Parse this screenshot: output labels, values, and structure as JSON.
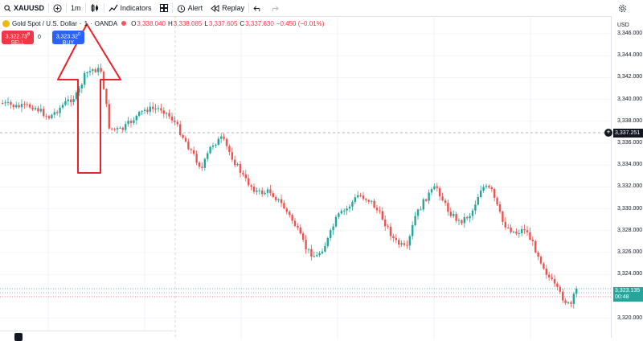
{
  "toolbar": {
    "symbol": "XAUUSD",
    "interval": "1m",
    "indicators_label": "Indicators",
    "alert_label": "Alert",
    "replay_label": "Replay"
  },
  "legend": {
    "name": "Gold Spot / U.S. Dollar",
    "interval": "1",
    "source": "OANDA",
    "o_label": "O",
    "o": "3,338.040",
    "h_label": "H",
    "h": "3,338.085",
    "l_label": "L",
    "l": "3,337.605",
    "c_label": "C",
    "c": "3,337.630",
    "change": "−0.450 (−0.01%)"
  },
  "trade": {
    "sell_price": "3,322.73",
    "sell_sup": "8",
    "sell_label": "SELL",
    "buy_price": "3,323.32",
    "buy_sup": "0",
    "buy_label": "BUY"
  },
  "axis": {
    "currency": "USD",
    "ticks": [
      "3,346.000",
      "3,344.000",
      "3,342.000",
      "3,340.000",
      "3,338.000",
      "3,336.000",
      "3,334.000",
      "3,332.000",
      "3,330.000",
      "3,328.000",
      "3,326.000",
      "3,324.000",
      "3,322.000",
      "3,320.000"
    ]
  },
  "markers": {
    "crosshair_price": "3,337.251",
    "last_price": "3,323.135",
    "countdown": "00:48"
  },
  "colors": {
    "up": "#26a69a",
    "down": "#ef5350",
    "annotation": "#e8232a",
    "buy": "#2962ff",
    "sell": "#f23645"
  },
  "icons": {
    "search": "search-icon",
    "add": "plus-circle-icon",
    "candles": "candlestick-icon",
    "indicators": "indicators-icon",
    "templates": "grid-icon",
    "alert": "alarm-clock-icon",
    "replay": "replay-icon",
    "undo": "undo-icon",
    "redo": "redo-icon",
    "settings": "gear-icon"
  }
}
